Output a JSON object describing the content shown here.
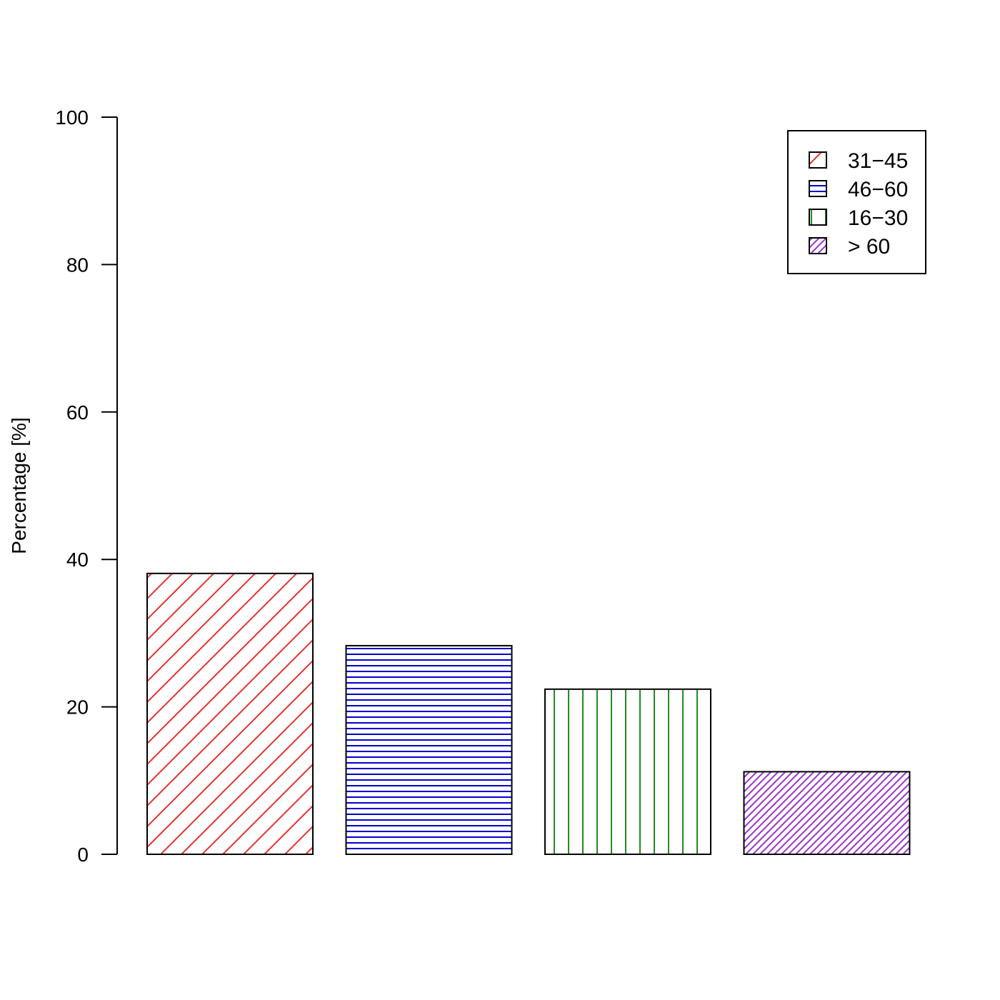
{
  "chart_data": {
    "type": "bar",
    "title": "",
    "xlabel": "",
    "ylabel": "Percentage [%]",
    "ylim": [
      0,
      100
    ],
    "yticks": [
      0,
      20,
      40,
      60,
      80,
      100
    ],
    "grid": false,
    "legend_position": "top-right",
    "series": [
      {
        "name": "31−45",
        "value": 38.1,
        "color": "#e5302d",
        "pattern": "diagonal-wide"
      },
      {
        "name": "46−60",
        "value": 28.3,
        "color": "#0000cd",
        "pattern": "horizontal"
      },
      {
        "name": "16−30",
        "value": 22.4,
        "color": "#228b22",
        "pattern": "vertical"
      },
      {
        "name": "> 60",
        "value": 11.2,
        "color": "#9932cc",
        "pattern": "diagonal-dense"
      }
    ]
  }
}
